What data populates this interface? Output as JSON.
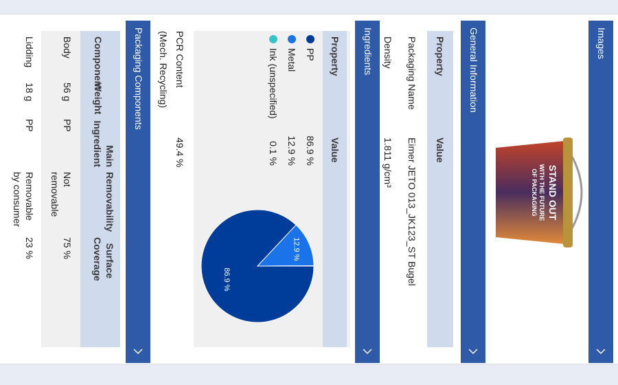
{
  "images": {
    "title": "Images",
    "caption": [
      "STAND OUT",
      "WITH THE FUTURE",
      "OF PACKAGING"
    ]
  },
  "general": {
    "title": "General Information",
    "columns": [
      "Property",
      "Value"
    ],
    "rows": [
      [
        "Packaging Name",
        "Eimer JETO 013_JK123_ST Bugel"
      ],
      [
        "Density",
        "1.811 g/cm³"
      ]
    ]
  },
  "ingredients": {
    "title": "Ingredients",
    "columns": [
      "Property",
      "Value"
    ],
    "items": [
      {
        "name": "PP",
        "value": 86.9,
        "value_label": "86.9 %",
        "color": "#003d9b"
      },
      {
        "name": "Metal",
        "value": 12.9,
        "value_label": "12.9 %",
        "color": "#1a73e8"
      },
      {
        "name": "Ink (unspecified)",
        "value": 0.1,
        "value_label": "0.1 %",
        "color": "#38c3cc"
      }
    ],
    "pcr": {
      "label": "PCR Content (Mech. Recycling)",
      "value": "49.4 %"
    }
  },
  "components": {
    "title": "Packaging Components",
    "columns": [
      "Component",
      "Weight",
      "Main Ingredient",
      "Removability",
      "Surface Coverage"
    ],
    "rows": [
      [
        "Body",
        "56 g",
        "PP",
        "Not removable",
        "75 %"
      ],
      [
        "Lidding",
        "18 g",
        "PP",
        "Removable by consumer",
        "23 %"
      ]
    ]
  }
}
